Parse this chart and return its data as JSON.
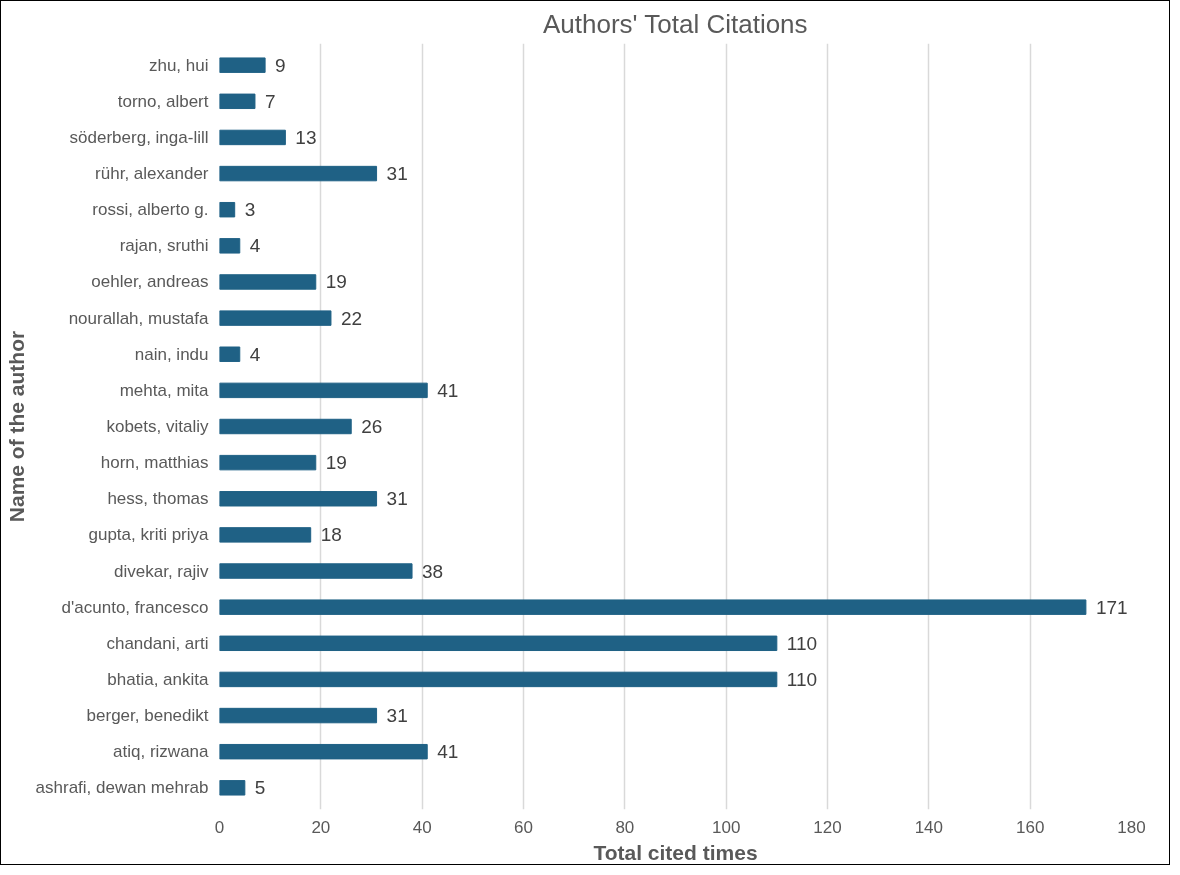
{
  "chart_data": {
    "type": "bar",
    "orientation": "horizontal",
    "title": "Authors' Total Citations",
    "xlabel": "Total cited times",
    "ylabel": "Name of the author",
    "categories": [
      "zhu, hui",
      "torno, albert",
      "söderberg, inga-lill",
      "rühr, alexander",
      "rossi, alberto g.",
      "rajan, sruthi",
      "oehler, andreas",
      "nourallah, mustafa",
      "nain, indu",
      "mehta, mita",
      "kobets, vitaliy",
      "horn, matthias",
      "hess, thomas",
      "gupta, kriti priya",
      "divekar, rajiv",
      "d'acunto, francesco",
      "chandani, arti",
      "bhatia, ankita",
      "berger, benedikt",
      "atiq, rizwana",
      "ashrafi, dewan mehrab"
    ],
    "values": [
      9,
      7,
      13,
      31,
      3,
      4,
      19,
      22,
      4,
      41,
      26,
      19,
      31,
      18,
      38,
      171,
      110,
      110,
      31,
      41,
      5
    ],
    "color": "#1f6185",
    "xlim": [
      0,
      180
    ],
    "xticks": [
      0,
      20,
      40,
      60,
      80,
      100,
      120,
      140,
      160,
      180
    ],
    "grid": "x",
    "data_labels": true
  }
}
